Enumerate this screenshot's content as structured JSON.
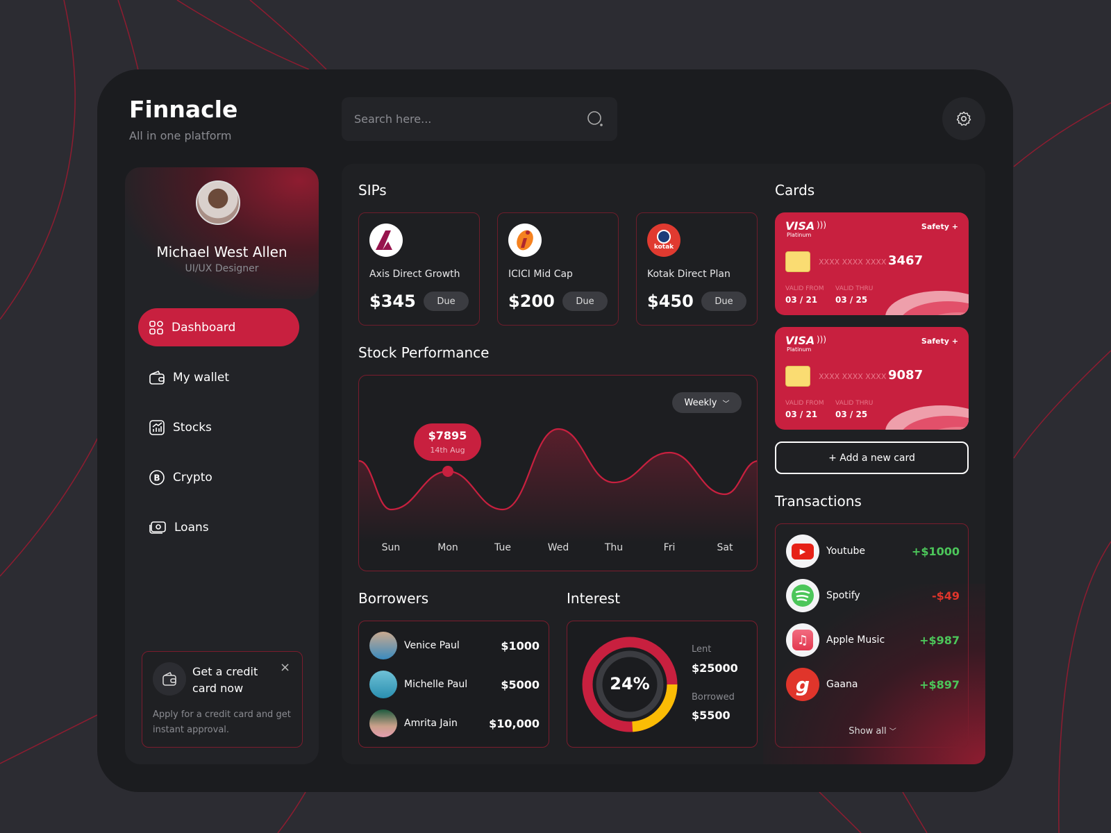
{
  "app": {
    "name": "Finnacle",
    "tagline": "All in one platform"
  },
  "search": {
    "placeholder": "Search here..."
  },
  "profile": {
    "name": "Michael West Allen",
    "role": "UI/UX Designer"
  },
  "nav": [
    {
      "label": "Dashboard",
      "icon": "grid-icon",
      "active": true
    },
    {
      "label": "My wallet",
      "icon": "wallet-icon"
    },
    {
      "label": "Stocks",
      "icon": "chart-icon"
    },
    {
      "label": "Crypto",
      "icon": "bitcoin-icon"
    },
    {
      "label": "Loans",
      "icon": "cash-icon"
    }
  ],
  "promo": {
    "title": "Get a credit card now",
    "body": "Apply for a credit card and get instant approval."
  },
  "sips": {
    "title": "SIPs",
    "items": [
      {
        "name": "Axis Direct Growth",
        "amount": "$345",
        "status": "Due"
      },
      {
        "name": "ICICI Mid Cap",
        "amount": "$200",
        "status": "Due"
      },
      {
        "name": "Kotak Direct Plan",
        "amount": "$450",
        "status": "Due",
        "logo_text": "kotak"
      }
    ]
  },
  "stock": {
    "title": "Stock Performance",
    "period": "Weekly",
    "days": [
      "Sun",
      "Mon",
      "Tue",
      "Wed",
      "Thu",
      "Fri",
      "Sat"
    ],
    "tooltip": {
      "value": "$7895",
      "date": "14th Aug",
      "day": "Mon"
    }
  },
  "borrowers": {
    "title": "Borrowers",
    "items": [
      {
        "name": "Venice Paul",
        "amount": "$1000"
      },
      {
        "name": "Michelle Paul",
        "amount": "$5000"
      },
      {
        "name": "Amrita Jain",
        "amount": "$10,000"
      }
    ]
  },
  "interest": {
    "title": "Interest",
    "percent": "24%",
    "percent_value": 24,
    "lent_label": "Lent",
    "lent": "$25000",
    "borrowed_label": "Borrowed",
    "borrowed": "$5500"
  },
  "cards": {
    "title": "Cards",
    "items": [
      {
        "brand": "VISA",
        "tier": "Platinum",
        "badge": "Safety +",
        "masked": "XXXX XXXX XXXX",
        "last4": "3467",
        "valid_from_label": "VALID FROM",
        "valid_from": "03 / 21",
        "valid_thru_label": "VALID THRU",
        "valid_thru": "03 / 25"
      },
      {
        "brand": "VISA",
        "tier": "Platinum",
        "badge": "Safety +",
        "masked": "XXXX XXXX XXXX",
        "last4": "9087",
        "valid_from_label": "VALID FROM",
        "valid_from": "03 / 21",
        "valid_thru_label": "VALID THRU",
        "valid_thru": "03 / 25"
      }
    ],
    "add_label": "+ Add a new card"
  },
  "transactions": {
    "title": "Transactions",
    "items": [
      {
        "name": "Youtube",
        "amount": "+$1000",
        "positive": true
      },
      {
        "name": "Spotify",
        "amount": "-$49",
        "positive": false
      },
      {
        "name": "Apple Music",
        "amount": "+$987",
        "positive": true
      },
      {
        "name": "Gaana",
        "amount": "+$897",
        "positive": true
      }
    ],
    "show_all": "Show all"
  },
  "colors": {
    "accent": "#c8203f",
    "positive": "#4cc65a",
    "negative": "#e0352b",
    "donut_secondary": "#fbbc05"
  }
}
